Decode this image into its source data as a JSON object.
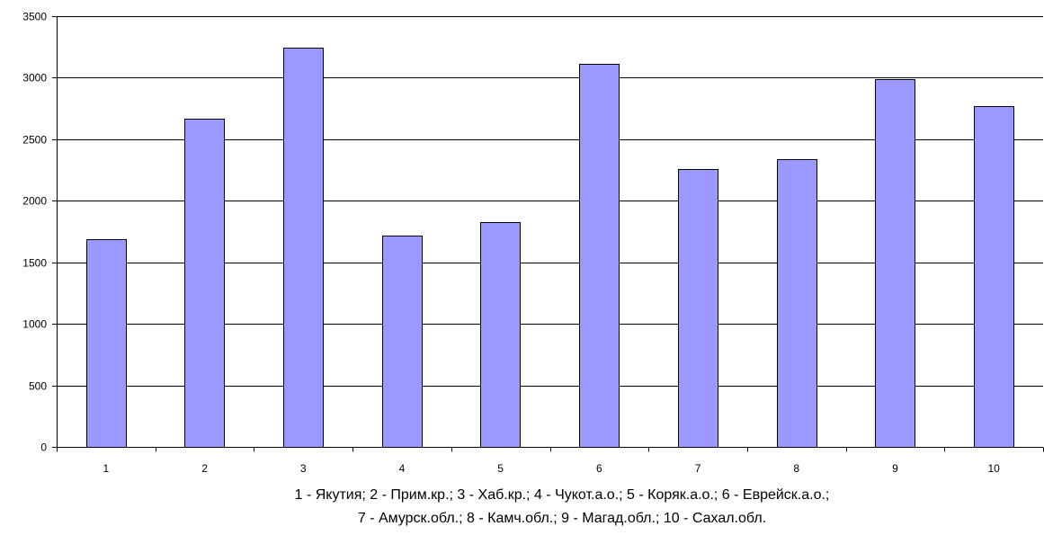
{
  "chart_data": {
    "type": "bar",
    "categories": [
      "1",
      "2",
      "3",
      "4",
      "5",
      "6",
      "7",
      "8",
      "9",
      "10"
    ],
    "values": [
      1690,
      2670,
      3245,
      1720,
      1825,
      3110,
      2260,
      2340,
      2985,
      2770
    ],
    "y_ticks": [
      "0",
      "500",
      "1000",
      "1500",
      "2000",
      "2500",
      "3000",
      "3500"
    ],
    "ylim": [
      0,
      3500
    ],
    "title": "",
    "xlabel": "",
    "ylabel": "",
    "grid": true,
    "legend": "none",
    "caption_lines": [
      "1 - Якутия; 2 - Прим.кр.; 3 - Хаб.кр.; 4 - Чукот.а.о.; 5 - Коряк.а.о.; 6 - Еврейск.а.о.;",
      "7 - Амурск.обл.; 8 - Камч.обл.; 9 - Магад.обл.; 10 - Сахал.обл."
    ],
    "colors": {
      "bar_fill": "#9999FF",
      "bar_stroke": "#000000",
      "grid": "#000000",
      "axis": "#000000"
    }
  }
}
